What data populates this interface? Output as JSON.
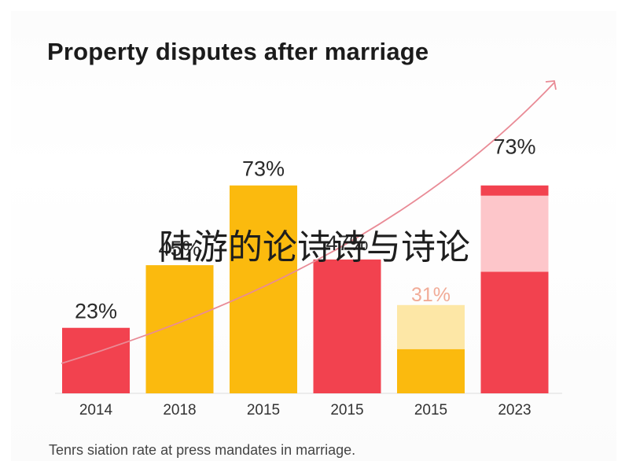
{
  "chart_data": {
    "type": "bar",
    "title": "Property disputes after marriage",
    "caption": "Tenrs siation rate at press mandates in marriage.",
    "overlay_text": "陆游的论诗诗与诗论",
    "categories": [
      "2014",
      "2018",
      "2015",
      "2015",
      "2015",
      "2023"
    ],
    "values": [
      23,
      45,
      73,
      47,
      31,
      73
    ],
    "data_labels": [
      "23%",
      "45%",
      "73%",
      "47%",
      "31%",
      "73%"
    ],
    "ylim": [
      0,
      100
    ],
    "colors": {
      "red": "#f2424f",
      "yellow": "#fbba0e",
      "pink_light": "#fdc6ca",
      "yellow_light": "#fde7a6",
      "trend_line": "#e98b96",
      "axis": "#dddddd"
    }
  }
}
